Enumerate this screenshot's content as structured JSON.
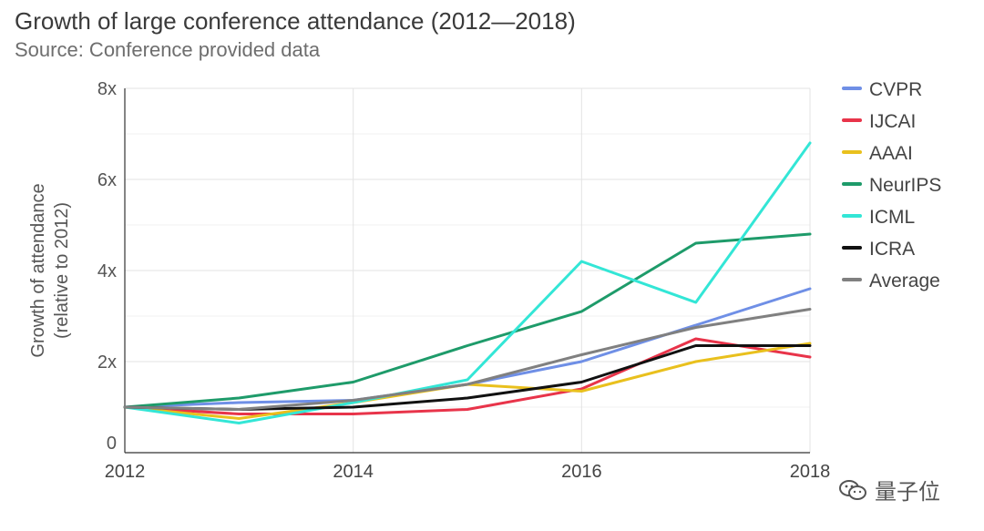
{
  "title": "Growth of large conference attendance (2012—2018)",
  "subtitle": "Source: Conference provided data",
  "watermark": "量子位",
  "chart_data": {
    "type": "line",
    "title": "Growth of large conference attendance (2012—2018)",
    "subtitle": "Source: Conference provided data",
    "xlabel": "",
    "ylabel": "Growth of attendance (relative to 2012)",
    "ylabel_lines": [
      "Growth of attendance",
      "(relative to 2012)"
    ],
    "x": [
      2012,
      2013,
      2014,
      2015,
      2016,
      2017,
      2018
    ],
    "x_ticks": [
      "2012",
      "2014",
      "2016",
      "2018"
    ],
    "x_tick_values": [
      2012,
      2014,
      2016,
      2018
    ],
    "y_ticks": [
      "0",
      "2x",
      "4x",
      "6x",
      "8x"
    ],
    "y_tick_values": [
      0,
      2,
      4,
      6,
      8
    ],
    "xlim": [
      2012,
      2018
    ],
    "ylim": [
      0,
      8
    ],
    "grid": true,
    "legend_position": "right",
    "series": [
      {
        "name": "CVPR",
        "color": "#6f8fe6",
        "values": [
          1.0,
          1.1,
          1.15,
          1.5,
          2.0,
          2.8,
          3.6
        ]
      },
      {
        "name": "IJCAI",
        "color": "#e8344a",
        "values": [
          1.0,
          0.85,
          0.85,
          0.95,
          1.4,
          2.5,
          2.1
        ]
      },
      {
        "name": "AAAI",
        "color": "#e9c01d",
        "values": [
          1.0,
          0.75,
          1.1,
          1.5,
          1.35,
          2.0,
          2.4
        ]
      },
      {
        "name": "NeurIPS",
        "color": "#1e9b6a",
        "values": [
          1.0,
          1.2,
          1.55,
          2.35,
          3.1,
          4.6,
          4.8
        ]
      },
      {
        "name": "ICML",
        "color": "#33e6d6",
        "values": [
          1.0,
          0.65,
          1.1,
          1.6,
          4.2,
          3.3,
          6.8
        ]
      },
      {
        "name": "ICRA",
        "color": "#111111",
        "values": [
          1.0,
          0.95,
          1.0,
          1.2,
          1.55,
          2.35,
          2.35
        ]
      },
      {
        "name": "Average",
        "color": "#808080",
        "values": [
          1.0,
          0.95,
          1.15,
          1.5,
          2.15,
          2.75,
          3.15
        ]
      }
    ]
  }
}
